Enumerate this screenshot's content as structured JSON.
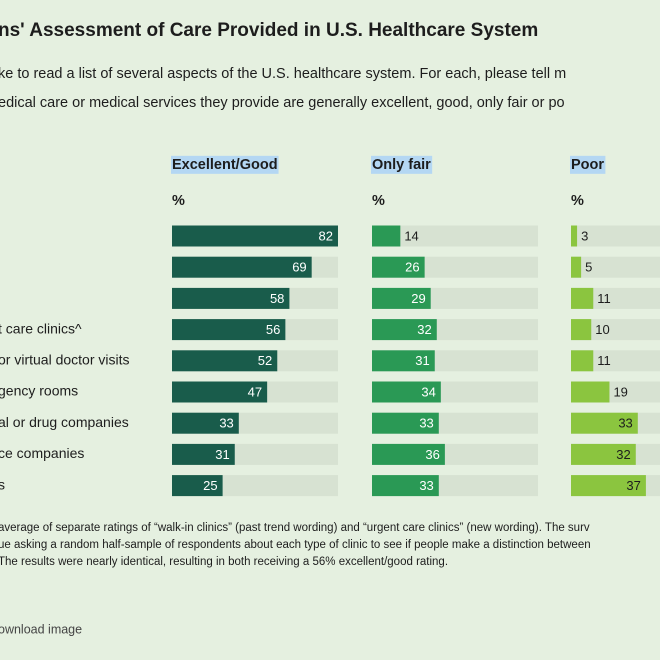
{
  "chart_data": {
    "type": "bar",
    "title": "ns' Assessment of Care Provided in U.S. Healthcare System",
    "subtitle": [
      "ke to read a list of several aspects of the U.S. healthcare system. For each, please tell m",
      "edical care or medical services they provide are generally excellent, good, only fair or po"
    ],
    "unit_label": "%",
    "categories": [
      null,
      null,
      null,
      "t care clinics^",
      "or virtual doctor visits",
      "gency rooms",
      "al or drug companies",
      "ce companies",
      "s"
    ],
    "series": [
      {
        "name": "Excellent/Good",
        "color": "#195c4b",
        "values": [
          82,
          69,
          58,
          56,
          52,
          47,
          33,
          31,
          25
        ]
      },
      {
        "name": "Only fair",
        "color": "#2a9955",
        "values": [
          14,
          26,
          29,
          32,
          31,
          34,
          33,
          36,
          33
        ]
      },
      {
        "name": "Poor",
        "color": "#8bc53f",
        "values": [
          3,
          5,
          11,
          10,
          11,
          19,
          33,
          32,
          37
        ]
      }
    ],
    "xlim": [
      0,
      82
    ],
    "footnote": [
      " average of separate ratings of “walk-in clinics” (past trend wording) and “urgent care clinics” (new wording). The surv",
      "ue asking a random half-sample of respondents about each type of clinic to see if people make a distinction between",
      "The results were nearly identical, resulting in both receiving a 56% excellent/good rating."
    ],
    "download": "ownload image"
  }
}
